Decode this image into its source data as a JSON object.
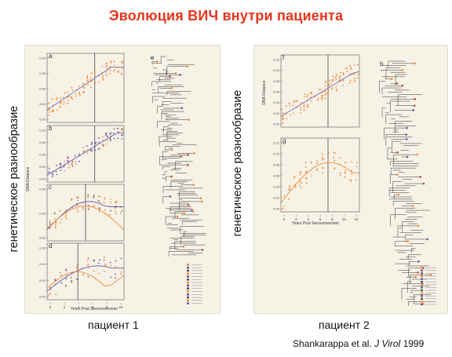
{
  "title": "Эволюция ВИЧ внутри пациента",
  "y_label_left": "генетическое разнообразие",
  "y_label_right": "генетическое разнообразие",
  "caption_left": "пациент 1",
  "caption_right": "пациент 2",
  "reference": {
    "authors": "Shankarappa et al.",
    "journal": "J Virol",
    "year": "1999"
  },
  "panels": {
    "a": "a",
    "b": "b",
    "c": "c",
    "d": "d",
    "e": "e",
    "f": "f",
    "g": "g",
    "h": "h"
  },
  "figure1": {
    "x_axis_label": "Years Post Seroconversion",
    "y_axis_label": "DNA Distance",
    "x_ticks": [
      "0",
      "2",
      "4",
      "6",
      "8",
      "10"
    ],
    "a_ticks": [
      "0.10",
      "0.08",
      "0.06",
      "0.04",
      "0.02"
    ],
    "b_ticks": [
      "0.10",
      "0.08",
      "0.06",
      "0.04",
      "0.02"
    ],
    "c_ticks": [
      "0.06",
      "0.04",
      "0.02"
    ],
    "d_ticks": [
      "0.06",
      "0.04",
      "0.02",
      "0.00"
    ]
  },
  "figure2": {
    "x_axis_label": "Years Post Seroconversion",
    "y_axis_label": "DNA Distance",
    "x_ticks": [
      "0",
      "2",
      "4",
      "6",
      "8",
      "10",
      "12"
    ],
    "f_ticks": [
      "0.12",
      "0.10",
      "0.08",
      "0.06",
      "0.04",
      "0.02",
      "0.00"
    ],
    "g_ticks": [
      "0.12",
      "0.10",
      "0.08",
      "0.06",
      "0.04",
      "0.02",
      "0.00"
    ]
  },
  "colors": {
    "title": "#e8341c",
    "orange": "#f08a3a",
    "purple": "#6a5aa8",
    "tree": "#333333"
  }
}
